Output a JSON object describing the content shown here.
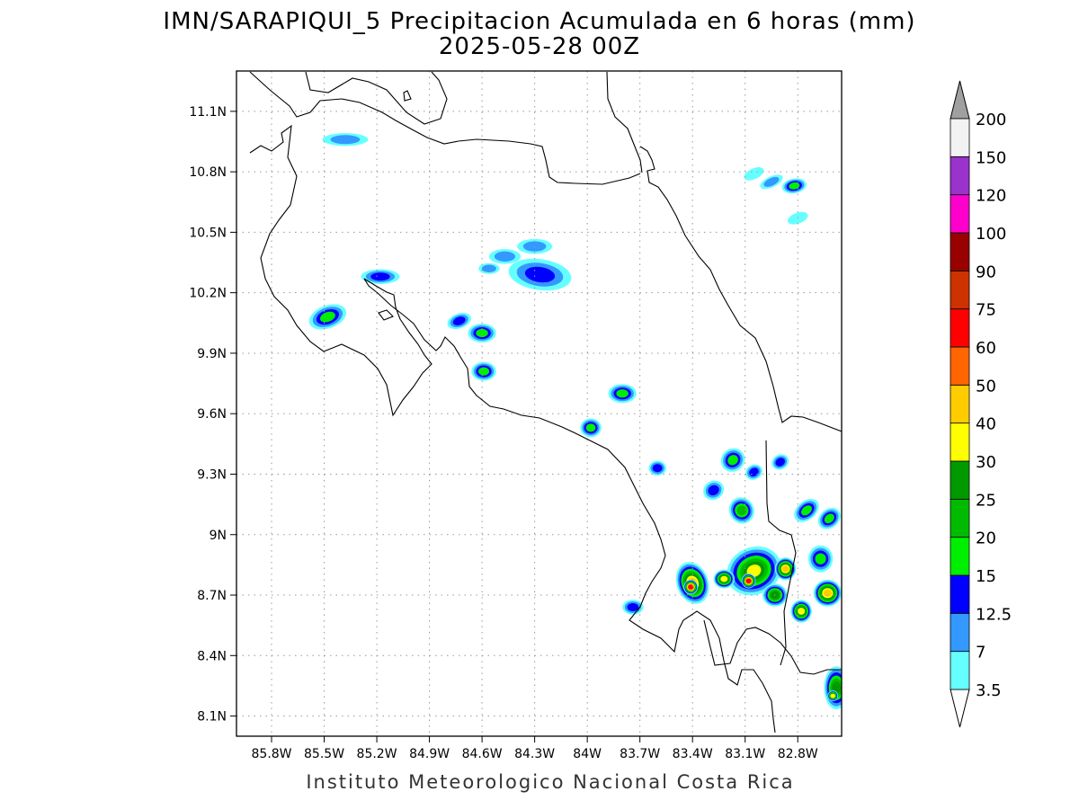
{
  "title": {
    "line1": "IMN/SARAPIQUI_5 Precipitacion Acumulada en 6 horas (mm)",
    "line2": "2025-05-28 00Z"
  },
  "footer": "Instituto Meteorologico Nacional Costa Rica",
  "map": {
    "lon_range": [
      -86.0,
      -82.55
    ],
    "lat_range": [
      8.0,
      11.3
    ],
    "lon_ticks": [
      {
        "value": -85.8,
        "label": "85.8W"
      },
      {
        "value": -85.5,
        "label": "85.5W"
      },
      {
        "value": -85.2,
        "label": "85.2W"
      },
      {
        "value": -84.9,
        "label": "84.9W"
      },
      {
        "value": -84.6,
        "label": "84.6W"
      },
      {
        "value": -84.3,
        "label": "84.3W"
      },
      {
        "value": -84.0,
        "label": "84W"
      },
      {
        "value": -83.7,
        "label": "83.7W"
      },
      {
        "value": -83.4,
        "label": "83.4W"
      },
      {
        "value": -83.1,
        "label": "83.1W"
      },
      {
        "value": -82.8,
        "label": "82.8W"
      }
    ],
    "lat_ticks": [
      {
        "value": 11.1,
        "label": "11.1N"
      },
      {
        "value": 10.8,
        "label": "10.8N"
      },
      {
        "value": 10.5,
        "label": "10.5N"
      },
      {
        "value": 10.2,
        "label": "10.2N"
      },
      {
        "value": 9.9,
        "label": "9.9N"
      },
      {
        "value": 9.6,
        "label": "9.6N"
      },
      {
        "value": 9.3,
        "label": "9.3N"
      },
      {
        "value": 9.0,
        "label": "9N"
      },
      {
        "value": 8.7,
        "label": "8.7N"
      },
      {
        "value": 8.4,
        "label": "8.4N"
      },
      {
        "value": 8.1,
        "label": "8.1N"
      }
    ],
    "grid": true
  },
  "colorbar": {
    "units": "mm",
    "levels": [
      {
        "label": "3.5",
        "color": "#66ffff"
      },
      {
        "label": "7",
        "color": "#3399ff"
      },
      {
        "label": "12.5",
        "color": "#0000ff"
      },
      {
        "label": "15",
        "color": "#00ee00"
      },
      {
        "label": "20",
        "color": "#00bb00"
      },
      {
        "label": "25",
        "color": "#009900"
      },
      {
        "label": "30",
        "color": "#ffff00"
      },
      {
        "label": "40",
        "color": "#ffcc00"
      },
      {
        "label": "50",
        "color": "#ff6600"
      },
      {
        "label": "60",
        "color": "#ff0000"
      },
      {
        "label": "75",
        "color": "#cc3300"
      },
      {
        "label": "90",
        "color": "#990000"
      },
      {
        "label": "100",
        "color": "#ff00cc"
      },
      {
        "label": "120",
        "color": "#9933cc"
      },
      {
        "label": "150",
        "color": "#f2f2f2"
      },
      {
        "label": "200",
        "color": "#a0a0a0"
      }
    ]
  },
  "precip_cells": [
    {
      "lon": -85.38,
      "lat": 10.96,
      "rx": 0.12,
      "ry": 0.025,
      "rot": 0,
      "level": 1
    },
    {
      "lon": -84.27,
      "lat": 10.29,
      "rx": 0.17,
      "ry": 0.07,
      "rot": 8,
      "level": 2
    },
    {
      "lon": -84.3,
      "lat": 10.43,
      "rx": 0.09,
      "ry": 0.03,
      "rot": 0,
      "level": 1
    },
    {
      "lon": -85.18,
      "lat": 10.28,
      "rx": 0.1,
      "ry": 0.03,
      "rot": 0,
      "level": 2
    },
    {
      "lon": -85.48,
      "lat": 10.08,
      "rx": 0.1,
      "ry": 0.05,
      "rot": -20,
      "level": 3
    },
    {
      "lon": -84.73,
      "lat": 10.06,
      "rx": 0.06,
      "ry": 0.03,
      "rot": -20,
      "level": 2
    },
    {
      "lon": -84.6,
      "lat": 10.0,
      "rx": 0.07,
      "ry": 0.04,
      "rot": 0,
      "level": 3
    },
    {
      "lon": -84.59,
      "lat": 9.81,
      "rx": 0.06,
      "ry": 0.04,
      "rot": 0,
      "level": 3
    },
    {
      "lon": -84.47,
      "lat": 10.38,
      "rx": 0.08,
      "ry": 0.03,
      "rot": 0,
      "level": 1
    },
    {
      "lon": -84.56,
      "lat": 10.32,
      "rx": 0.05,
      "ry": 0.02,
      "rot": 0,
      "level": 1
    },
    {
      "lon": -83.8,
      "lat": 9.7,
      "rx": 0.07,
      "ry": 0.04,
      "rot": 0,
      "level": 3
    },
    {
      "lon": -83.98,
      "lat": 9.53,
      "rx": 0.05,
      "ry": 0.04,
      "rot": 0,
      "level": 3
    },
    {
      "lon": -82.82,
      "lat": 10.73,
      "rx": 0.06,
      "ry": 0.03,
      "rot": -10,
      "level": 3
    },
    {
      "lon": -82.95,
      "lat": 10.75,
      "rx": 0.06,
      "ry": 0.02,
      "rot": -25,
      "level": 1
    },
    {
      "lon": -82.8,
      "lat": 10.57,
      "rx": 0.05,
      "ry": 0.02,
      "rot": -20,
      "level": 0
    },
    {
      "lon": -83.05,
      "lat": 10.79,
      "rx": 0.05,
      "ry": 0.02,
      "rot": -25,
      "level": 0
    },
    {
      "lon": -83.17,
      "lat": 9.37,
      "rx": 0.06,
      "ry": 0.05,
      "rot": -40,
      "level": 3
    },
    {
      "lon": -83.12,
      "lat": 9.12,
      "rx": 0.06,
      "ry": 0.06,
      "rot": -30,
      "level": 4
    },
    {
      "lon": -83.28,
      "lat": 9.22,
      "rx": 0.05,
      "ry": 0.04,
      "rot": -30,
      "level": 2
    },
    {
      "lon": -83.05,
      "lat": 9.31,
      "rx": 0.04,
      "ry": 0.03,
      "rot": -30,
      "level": 2
    },
    {
      "lon": -82.9,
      "lat": 9.36,
      "rx": 0.04,
      "ry": 0.03,
      "rot": -30,
      "level": 2
    },
    {
      "lon": -83.6,
      "lat": 9.33,
      "rx": 0.04,
      "ry": 0.03,
      "rot": 0,
      "level": 2
    },
    {
      "lon": -82.75,
      "lat": 9.12,
      "rx": 0.07,
      "ry": 0.04,
      "rot": -40,
      "level": 3
    },
    {
      "lon": -82.62,
      "lat": 9.08,
      "rx": 0.06,
      "ry": 0.04,
      "rot": -40,
      "level": 3
    },
    {
      "lon": -83.4,
      "lat": 8.76,
      "rx": 0.08,
      "ry": 0.1,
      "rot": -20,
      "level": 7
    },
    {
      "lon": -83.41,
      "lat": 8.74,
      "rx": 0.03,
      "ry": 0.03,
      "rot": 0,
      "level": 9
    },
    {
      "lon": -83.05,
      "lat": 8.82,
      "rx": 0.15,
      "ry": 0.11,
      "rot": -25,
      "level": 6
    },
    {
      "lon": -83.08,
      "lat": 8.77,
      "rx": 0.03,
      "ry": 0.03,
      "rot": 0,
      "level": 9
    },
    {
      "lon": -82.87,
      "lat": 8.83,
      "rx": 0.05,
      "ry": 0.05,
      "rot": 0,
      "level": 7
    },
    {
      "lon": -82.63,
      "lat": 8.71,
      "rx": 0.07,
      "ry": 0.06,
      "rot": 0,
      "level": 7
    },
    {
      "lon": -82.78,
      "lat": 8.62,
      "rx": 0.05,
      "ry": 0.05,
      "rot": 0,
      "level": 6
    },
    {
      "lon": -83.22,
      "lat": 8.78,
      "rx": 0.05,
      "ry": 0.04,
      "rot": 0,
      "level": 6
    },
    {
      "lon": -82.93,
      "lat": 8.7,
      "rx": 0.06,
      "ry": 0.05,
      "rot": 0,
      "level": 5
    },
    {
      "lon": -82.58,
      "lat": 8.24,
      "rx": 0.06,
      "ry": 0.1,
      "rot": 0,
      "level": 5
    },
    {
      "lon": -82.6,
      "lat": 8.2,
      "rx": 0.02,
      "ry": 0.02,
      "rot": 0,
      "level": 6
    },
    {
      "lon": -83.74,
      "lat": 8.64,
      "rx": 0.05,
      "ry": 0.03,
      "rot": 0,
      "level": 2
    },
    {
      "lon": -82.67,
      "lat": 8.88,
      "rx": 0.06,
      "ry": 0.06,
      "rot": 0,
      "level": 3
    }
  ]
}
